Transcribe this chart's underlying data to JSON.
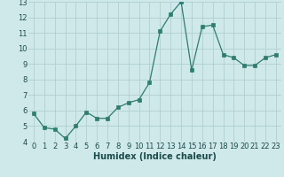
{
  "x": [
    0,
    1,
    2,
    3,
    4,
    5,
    6,
    7,
    8,
    9,
    10,
    11,
    12,
    13,
    14,
    15,
    16,
    17,
    18,
    19,
    20,
    21,
    22,
    23
  ],
  "y": [
    5.8,
    4.9,
    4.8,
    4.2,
    5.0,
    5.9,
    5.5,
    5.5,
    6.2,
    6.5,
    6.7,
    7.8,
    11.1,
    12.2,
    13.0,
    8.6,
    11.4,
    11.5,
    9.6,
    9.4,
    8.9,
    8.9,
    9.4,
    9.6
  ],
  "xlabel": "Humidex (Indice chaleur)",
  "ylim": [
    4,
    13
  ],
  "xlim": [
    -0.5,
    23.5
  ],
  "yticks": [
    4,
    5,
    6,
    7,
    8,
    9,
    10,
    11,
    12,
    13
  ],
  "xtick_labels": [
    "0",
    "1",
    "2",
    "3",
    "4",
    "5",
    "6",
    "7",
    "8",
    "9",
    "10",
    "11",
    "12",
    "13",
    "14",
    "15",
    "16",
    "17",
    "18",
    "19",
    "20",
    "21",
    "22",
    "23"
  ],
  "line_color": "#2e7d6e",
  "marker": "s",
  "marker_size": 2.5,
  "bg_color": "#cfe8ea",
  "grid_color": "#b0ced2",
  "fig_bg": "#cfe8ea",
  "tick_fontsize": 6,
  "xlabel_fontsize": 7
}
